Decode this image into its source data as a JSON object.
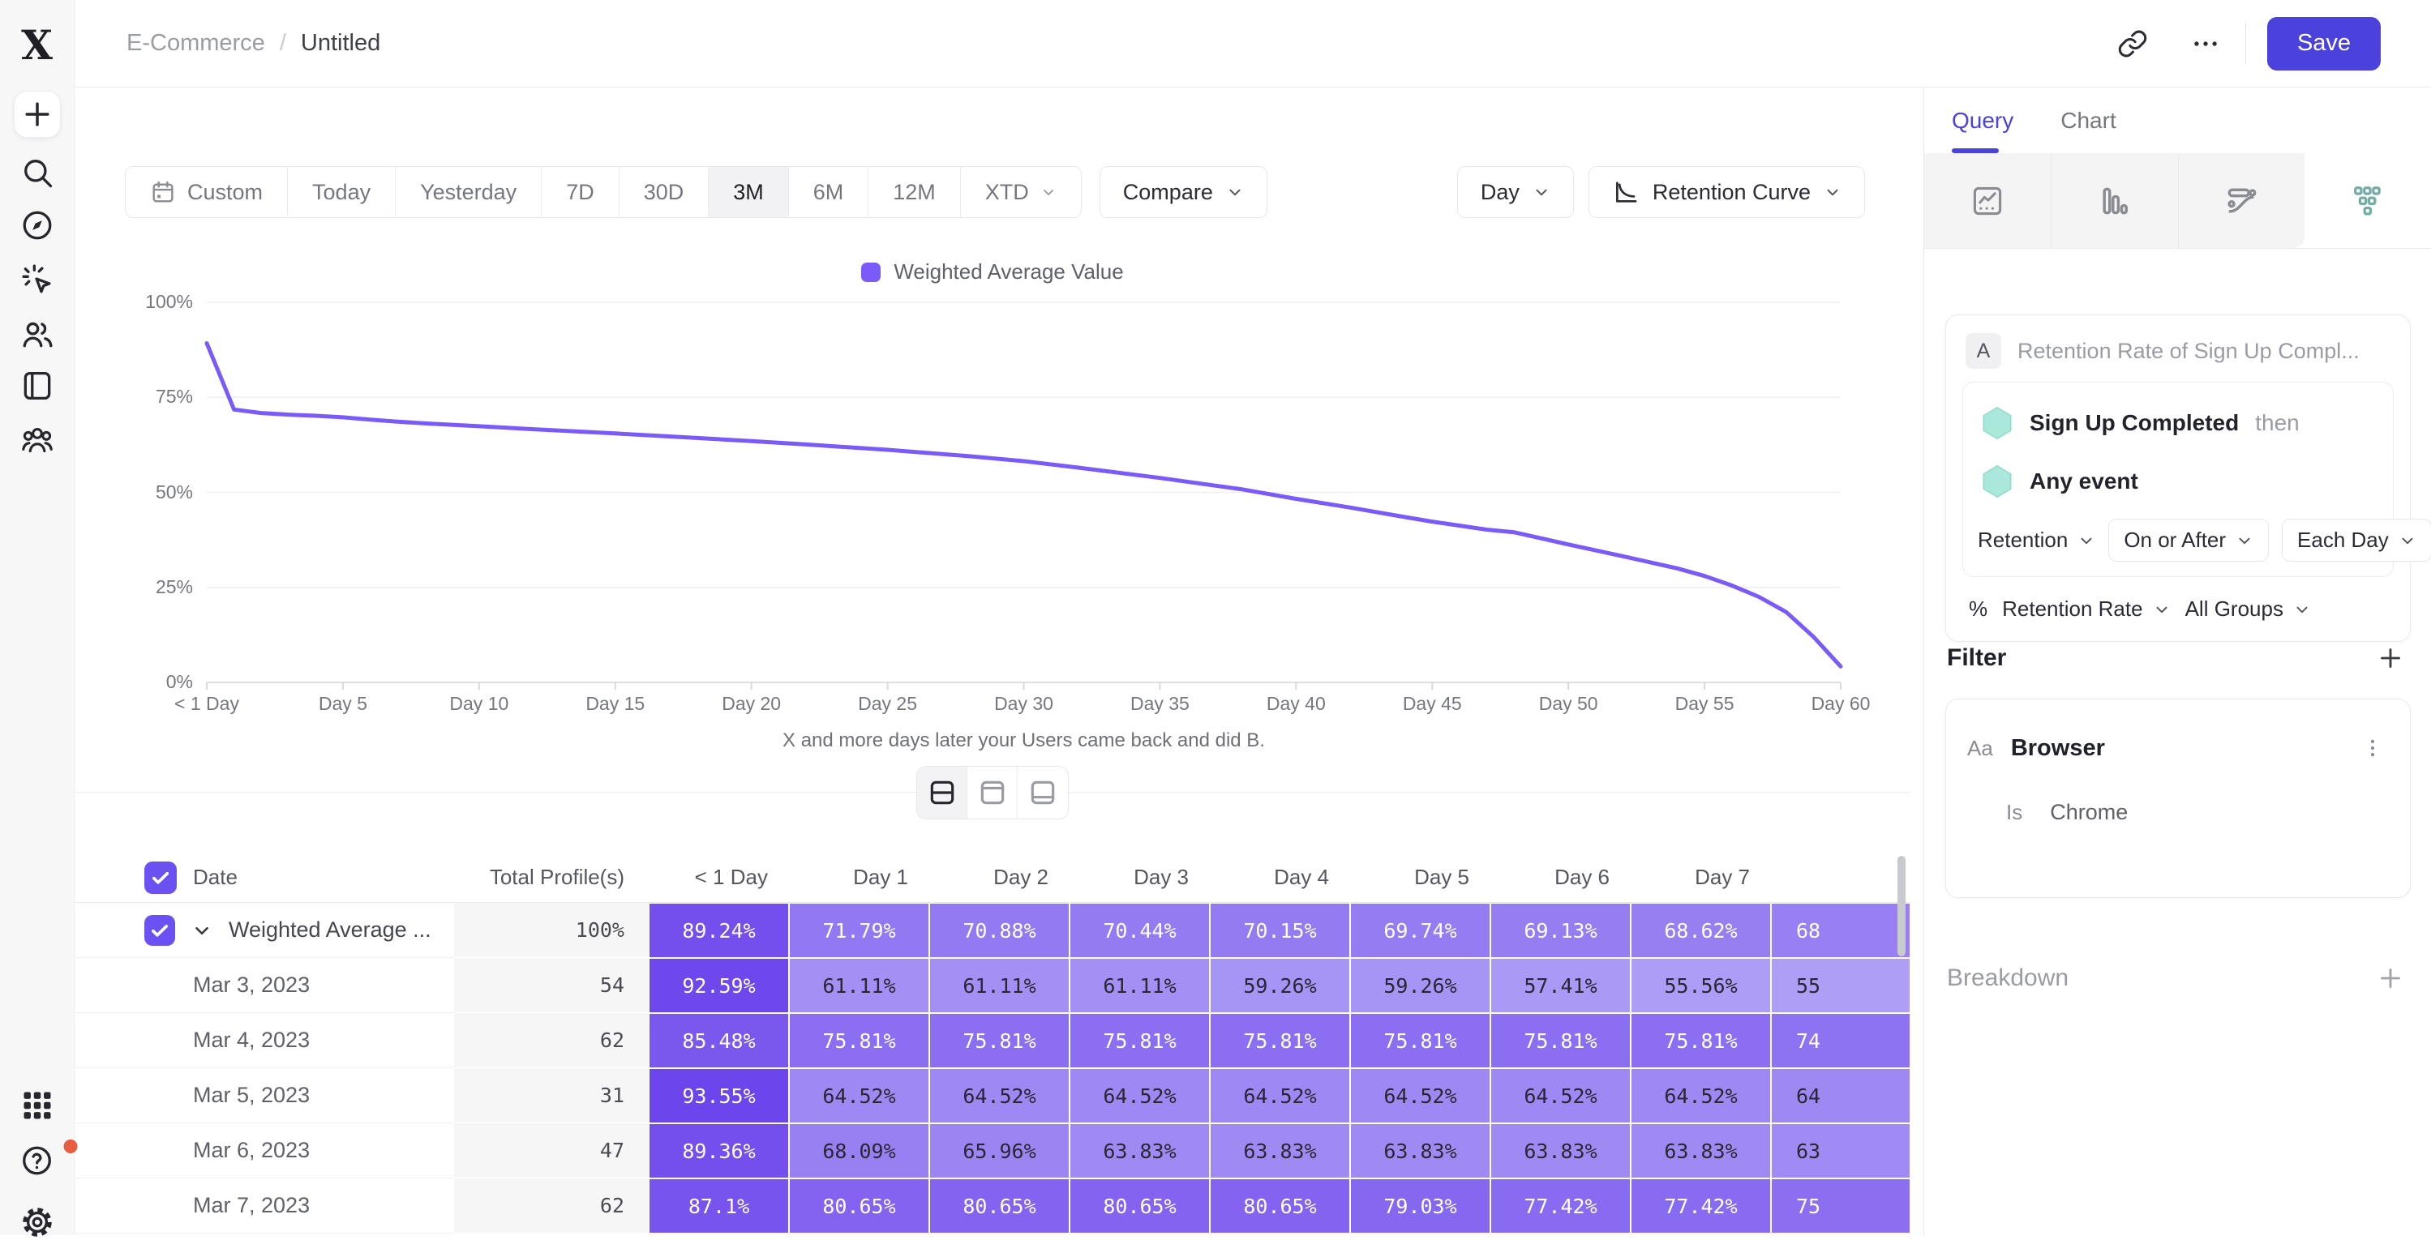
{
  "app": {
    "save": "Save",
    "accent_color": "#4B41DC"
  },
  "breadcrumb": {
    "section": "E-Commerce",
    "separator": "/",
    "page": "Untitled"
  },
  "toolbar": {
    "ranges": [
      {
        "label": "Custom",
        "icon": "calendar"
      },
      {
        "label": "Today"
      },
      {
        "label": "Yesterday"
      },
      {
        "label": "7D"
      },
      {
        "label": "30D"
      },
      {
        "label": "3M",
        "active": true
      },
      {
        "label": "6M"
      },
      {
        "label": "12M"
      },
      {
        "label": "XTD",
        "chevron": true
      }
    ],
    "compare": "Compare",
    "granularity": "Day",
    "view": "Retention Curve"
  },
  "chart_data": {
    "type": "line",
    "legend": [
      "Weighted Average Value"
    ],
    "xlabel": "X and more days later your Users came back and did B.",
    "ylim": [
      0,
      100
    ],
    "xrange": [
      0,
      60
    ],
    "grid": true,
    "yticks": [
      {
        "v": 0,
        "label": "0%"
      },
      {
        "v": 25,
        "label": "25%"
      },
      {
        "v": 50,
        "label": "50%"
      },
      {
        "v": 75,
        "label": "75%"
      },
      {
        "v": 100,
        "label": "100%"
      }
    ],
    "xticks": [
      {
        "d": 0,
        "label": "< 1 Day"
      },
      {
        "d": 5,
        "label": "Day 5"
      },
      {
        "d": 10,
        "label": "Day 10"
      },
      {
        "d": 15,
        "label": "Day 15"
      },
      {
        "d": 20,
        "label": "Day 20"
      },
      {
        "d": 25,
        "label": "Day 25"
      },
      {
        "d": 30,
        "label": "Day 30"
      },
      {
        "d": 35,
        "label": "Day 35"
      },
      {
        "d": 40,
        "label": "Day 40"
      },
      {
        "d": 45,
        "label": "Day 45"
      },
      {
        "d": 50,
        "label": "Day 50"
      },
      {
        "d": 55,
        "label": "Day 55"
      },
      {
        "d": 60,
        "label": "Day 60"
      }
    ],
    "series": [
      {
        "name": "Weighted Average Value",
        "color": "#7A5AF8",
        "points": [
          [
            0,
            89.24
          ],
          [
            1,
            71.79
          ],
          [
            2,
            70.88
          ],
          [
            3,
            70.44
          ],
          [
            4,
            70.15
          ],
          [
            5,
            69.74
          ],
          [
            6,
            69.13
          ],
          [
            7,
            68.62
          ],
          [
            8,
            68.15
          ],
          [
            10,
            67.4
          ],
          [
            12,
            66.6
          ],
          [
            15,
            65.5
          ],
          [
            18,
            64.3
          ],
          [
            20,
            63.5
          ],
          [
            22,
            62.6
          ],
          [
            25,
            61.2
          ],
          [
            28,
            59.5
          ],
          [
            30,
            58.2
          ],
          [
            32,
            56.5
          ],
          [
            35,
            53.8
          ],
          [
            38,
            50.8
          ],
          [
            40,
            48.3
          ],
          [
            42,
            46.0
          ],
          [
            44,
            43.5
          ],
          [
            45,
            42.3
          ],
          [
            47,
            40.2
          ],
          [
            48,
            39.5
          ],
          [
            50,
            36.3
          ],
          [
            52,
            33.2
          ],
          [
            54,
            30.0
          ],
          [
            55,
            28.0
          ],
          [
            56,
            25.5
          ],
          [
            57,
            22.5
          ],
          [
            58,
            18.5
          ],
          [
            59,
            12.0
          ],
          [
            60,
            4.2
          ]
        ]
      }
    ]
  },
  "view_toggle": {
    "options": [
      "split-view",
      "chart-only",
      "table-only"
    ],
    "selected": "split-view"
  },
  "table": {
    "select_all_checked": true,
    "columns": {
      "date": "Date",
      "total": "Total Profile(s)",
      "days": [
        "< 1 Day",
        "Day 1",
        "Day 2",
        "Day 3",
        "Day 4",
        "Day 5",
        "Day 6",
        "Day 7"
      ]
    },
    "rows": [
      {
        "label": "Weighted Average ...",
        "checked": true,
        "expand": true,
        "total": "100%",
        "cells": [
          "89.24%",
          "71.79%",
          "70.88%",
          "70.44%",
          "70.15%",
          "69.74%",
          "69.13%",
          "68.62%"
        ],
        "partial": "68"
      },
      {
        "label": "Mar 3, 2023",
        "total": "54",
        "cells": [
          "92.59%",
          "61.11%",
          "61.11%",
          "61.11%",
          "59.26%",
          "59.26%",
          "57.41%",
          "55.56%"
        ],
        "partial": "55"
      },
      {
        "label": "Mar 4, 2023",
        "total": "62",
        "cells": [
          "85.48%",
          "75.81%",
          "75.81%",
          "75.81%",
          "75.81%",
          "75.81%",
          "75.81%",
          "75.81%"
        ],
        "partial": "74"
      },
      {
        "label": "Mar 5, 2023",
        "total": "31",
        "cells": [
          "93.55%",
          "64.52%",
          "64.52%",
          "64.52%",
          "64.52%",
          "64.52%",
          "64.52%",
          "64.52%"
        ],
        "partial": "64"
      },
      {
        "label": "Mar 6, 2023",
        "total": "47",
        "cells": [
          "89.36%",
          "68.09%",
          "65.96%",
          "63.83%",
          "63.83%",
          "63.83%",
          "63.83%",
          "63.83%"
        ],
        "partial": "63"
      },
      {
        "label": "Mar 7, 2023",
        "total": "62",
        "cells": [
          "87.1%",
          "80.65%",
          "80.65%",
          "80.65%",
          "80.65%",
          "79.03%",
          "77.42%",
          "77.42%"
        ],
        "partial": "75"
      }
    ]
  },
  "panel": {
    "tabs": {
      "query": "Query",
      "chart": "Chart"
    },
    "query": {
      "badge": "A",
      "title": "Retention Rate of Sign Up Compl...",
      "step1": "Sign Up Completed",
      "step1_suffix": "then",
      "step2": "Any event",
      "retention": "Retention",
      "operator": "On or After",
      "bucket": "Each Day",
      "percent": "%",
      "measure": "Retention Rate",
      "groups": "All Groups"
    },
    "filter": {
      "title": "Filter",
      "type_label": "Aa",
      "property": "Browser",
      "operator": "Is",
      "value": "Chrome"
    },
    "breakdown": {
      "title": "Breakdown"
    }
  },
  "colors": {
    "accent": "#4B41DC",
    "line": "#7A5AF8",
    "cell_dark": "#6A42EC",
    "cell_light": "#B7AAF7",
    "teal": "#ABE8DC",
    "alert_dot": "#E85C3F"
  }
}
